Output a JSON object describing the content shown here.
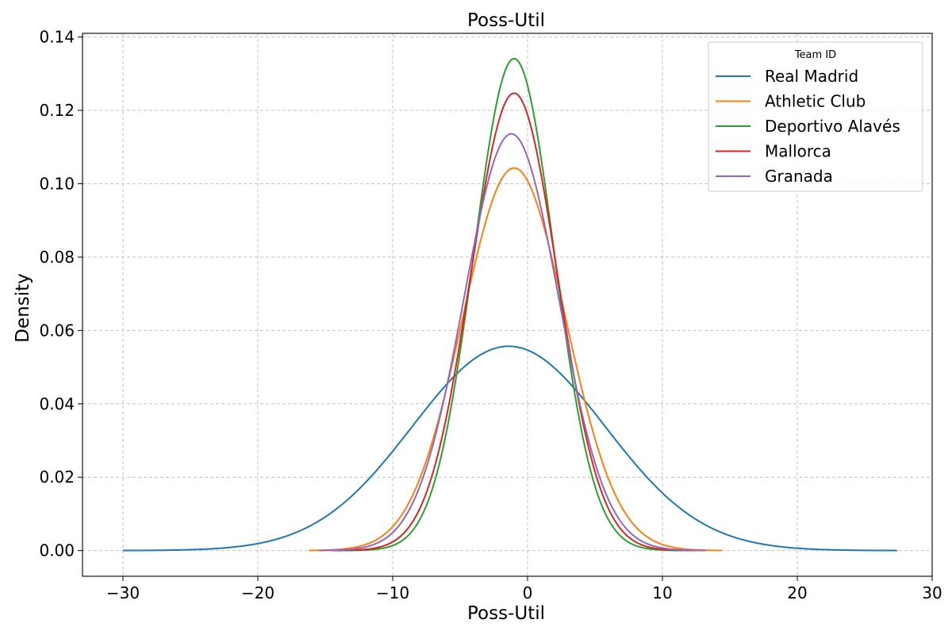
{
  "chart_data": {
    "type": "line",
    "title": "Poss-Util",
    "xlabel": "Poss-Util",
    "ylabel": "Density",
    "xlim": [
      -33,
      30
    ],
    "ylim": [
      -0.007,
      0.141
    ],
    "xticks": [
      -30,
      -20,
      -10,
      0,
      10,
      20,
      30
    ],
    "xtick_labels": [
      "−30",
      "−20",
      "−10",
      "0",
      "10",
      "20",
      "30"
    ],
    "yticks": [
      0.0,
      0.02,
      0.04,
      0.06,
      0.08,
      0.1,
      0.12,
      0.14
    ],
    "ytick_labels": [
      "0.00",
      "0.02",
      "0.04",
      "0.06",
      "0.08",
      "0.10",
      "0.12",
      "0.14"
    ],
    "grid": true,
    "legend": {
      "title": "Team ID",
      "position": "top-right"
    },
    "series": [
      {
        "name": "Real Madrid",
        "color": "#1f77b4",
        "mean": -1.4,
        "peak": 0.0557,
        "range": [
          -30.0,
          27.4
        ]
      },
      {
        "name": "Athletic Club",
        "color": "#ff7f0e",
        "mean": -1.0,
        "peak": 0.1043,
        "range": [
          -16.2,
          14.4
        ]
      },
      {
        "name": "Deportivo Alavés",
        "color": "#2ca02c",
        "mean": -1.0,
        "peak": 0.1341,
        "range": [
          -13.5,
          11.5
        ]
      },
      {
        "name": "Mallorca",
        "color": "#d62728",
        "mean": -1.0,
        "peak": 0.1247,
        "range": [
          -14.5,
          12.5
        ]
      },
      {
        "name": "Granada",
        "color": "#9467bd",
        "mean": -1.2,
        "peak": 0.1136,
        "range": [
          -15.5,
          13.2
        ]
      }
    ]
  }
}
